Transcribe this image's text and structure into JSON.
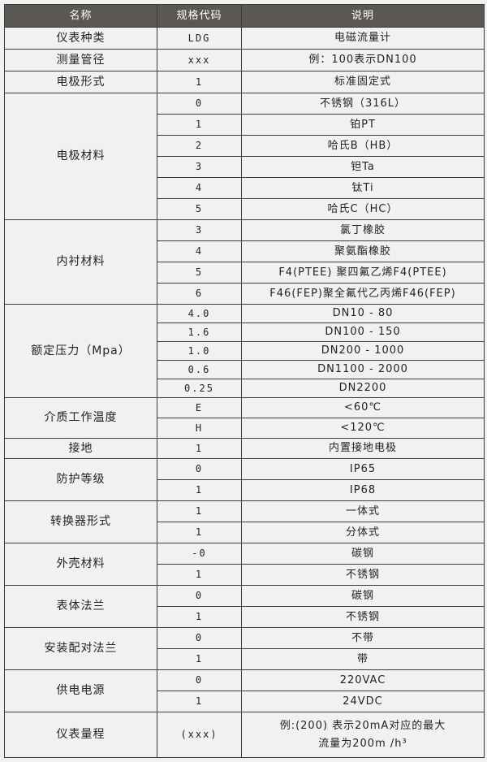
{
  "header": {
    "name": "名称",
    "code": "规格代码",
    "desc": "说明"
  },
  "groups": [
    {
      "name": "仪表种类",
      "rows": [
        {
          "code": "LDG",
          "desc": "电磁流量计"
        }
      ]
    },
    {
      "name": "测量管径",
      "rows": [
        {
          "code": "xxx",
          "desc": "例：100表示DN100"
        }
      ]
    },
    {
      "name": "电极形式",
      "rows": [
        {
          "code": "1",
          "desc": "标准固定式"
        }
      ]
    },
    {
      "name": "电极材料",
      "rows": [
        {
          "code": "0",
          "desc": "不锈钢（316L）"
        },
        {
          "code": "1",
          "desc": "铂PT"
        },
        {
          "code": "2",
          "desc": "哈氏B（HB）"
        },
        {
          "code": "3",
          "desc": "钽Ta"
        },
        {
          "code": "4",
          "desc": "钛Ti"
        },
        {
          "code": "5",
          "desc": "哈氏C（HC）"
        }
      ]
    },
    {
      "name": "内衬材料",
      "rows": [
        {
          "code": "3",
          "desc": "氯丁橡胶"
        },
        {
          "code": "4",
          "desc": "聚氨酯橡胶"
        },
        {
          "code": "5",
          "desc": "F4(PTEE) 聚四氟乙烯F4(PTEE)"
        },
        {
          "code": "6",
          "desc": "F46(FEP)聚全氟代乙丙烯F46(FEP)"
        }
      ]
    },
    {
      "name": "额定压力（Mpa）",
      "rows": [
        {
          "code": "4.0",
          "desc": "DN10 - 80"
        },
        {
          "code": "1.6",
          "desc": "DN100 - 150"
        },
        {
          "code": "1.0",
          "desc": "DN200 - 1000"
        },
        {
          "code": "0.6",
          "desc": "DN1100 - 2000"
        },
        {
          "code": "0.25",
          "desc": "DN2200"
        }
      ]
    },
    {
      "name": "介质工作温度",
      "rows": [
        {
          "code": "E",
          "desc": "<60℃"
        },
        {
          "code": "H",
          "desc": "<120℃"
        }
      ]
    },
    {
      "name": "接地",
      "rows": [
        {
          "code": "1",
          "desc": "内置接地电极"
        }
      ]
    },
    {
      "name": "防护等级",
      "rows": [
        {
          "code": "0",
          "desc": "IP65"
        },
        {
          "code": "1",
          "desc": "IP68"
        }
      ]
    },
    {
      "name": "转换器形式",
      "rows": [
        {
          "code": "1",
          "desc": "一体式"
        },
        {
          "code": "1",
          "desc": "分体式"
        }
      ]
    },
    {
      "name": "外壳材料",
      "rows": [
        {
          "code": "-0",
          "desc": "碳钢"
        },
        {
          "code": "1",
          "desc": "不锈钢"
        }
      ]
    },
    {
      "name": "表体法兰",
      "rows": [
        {
          "code": "0",
          "desc": "碳钢"
        },
        {
          "code": "1",
          "desc": "不锈钢"
        }
      ]
    },
    {
      "name": "安装配对法兰",
      "rows": [
        {
          "code": "0",
          "desc": "不带"
        },
        {
          "code": "1",
          "desc": "带"
        }
      ]
    },
    {
      "name": "供电电源",
      "rows": [
        {
          "code": "0",
          "desc": "220VAC"
        },
        {
          "code": "1",
          "desc": "24VDC"
        }
      ]
    },
    {
      "name": "仪表量程",
      "rows": [
        {
          "code": "(xxx)",
          "desc": "例:(200) 表示20mA对应的最大",
          "desc2": "流量为200m /h³"
        }
      ]
    }
  ]
}
